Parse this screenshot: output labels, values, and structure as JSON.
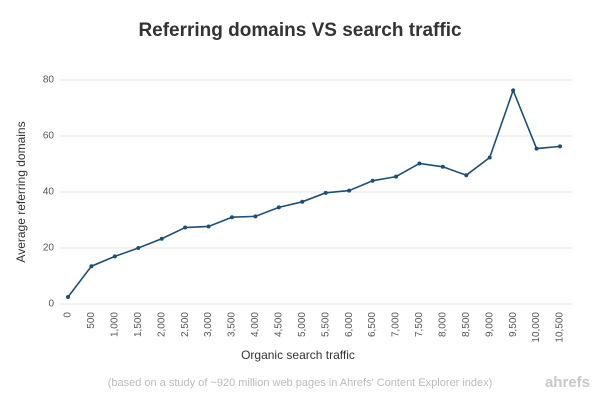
{
  "chart_data": {
    "type": "line",
    "title": "Referring domains VS search traffic",
    "x_label": "Organic search traffic",
    "y_label": "Average referring domains",
    "note": "(based on a study of ~920 million web pages in Ahrefs' Content Explorer index)",
    "brand": "ahrefs",
    "categories": [
      "0",
      "500",
      "1,000",
      "1,500",
      "2,000",
      "2,500",
      "3,000",
      "3,500",
      "4,000",
      "4,500",
      "5,000",
      "5,500",
      "6,000",
      "6,500",
      "7,000",
      "7,500",
      "8,000",
      "8,500",
      "9,000",
      "9,500",
      "10,000",
      "10,500"
    ],
    "series": [
      {
        "name": "Average referring domains",
        "color": "#1b4f7a",
        "values": [
          2.5,
          13.5,
          17,
          20,
          23.3,
          27.3,
          27.7,
          31,
          31.3,
          34.5,
          36.5,
          39.7,
          40.5,
          44,
          45.5,
          50.2,
          49,
          46,
          52.3,
          76.3,
          55.5,
          56.3
        ]
      }
    ],
    "ylim": [
      0,
      80
    ],
    "yticks": [
      0,
      20,
      40,
      60,
      80
    ],
    "grid": true
  }
}
